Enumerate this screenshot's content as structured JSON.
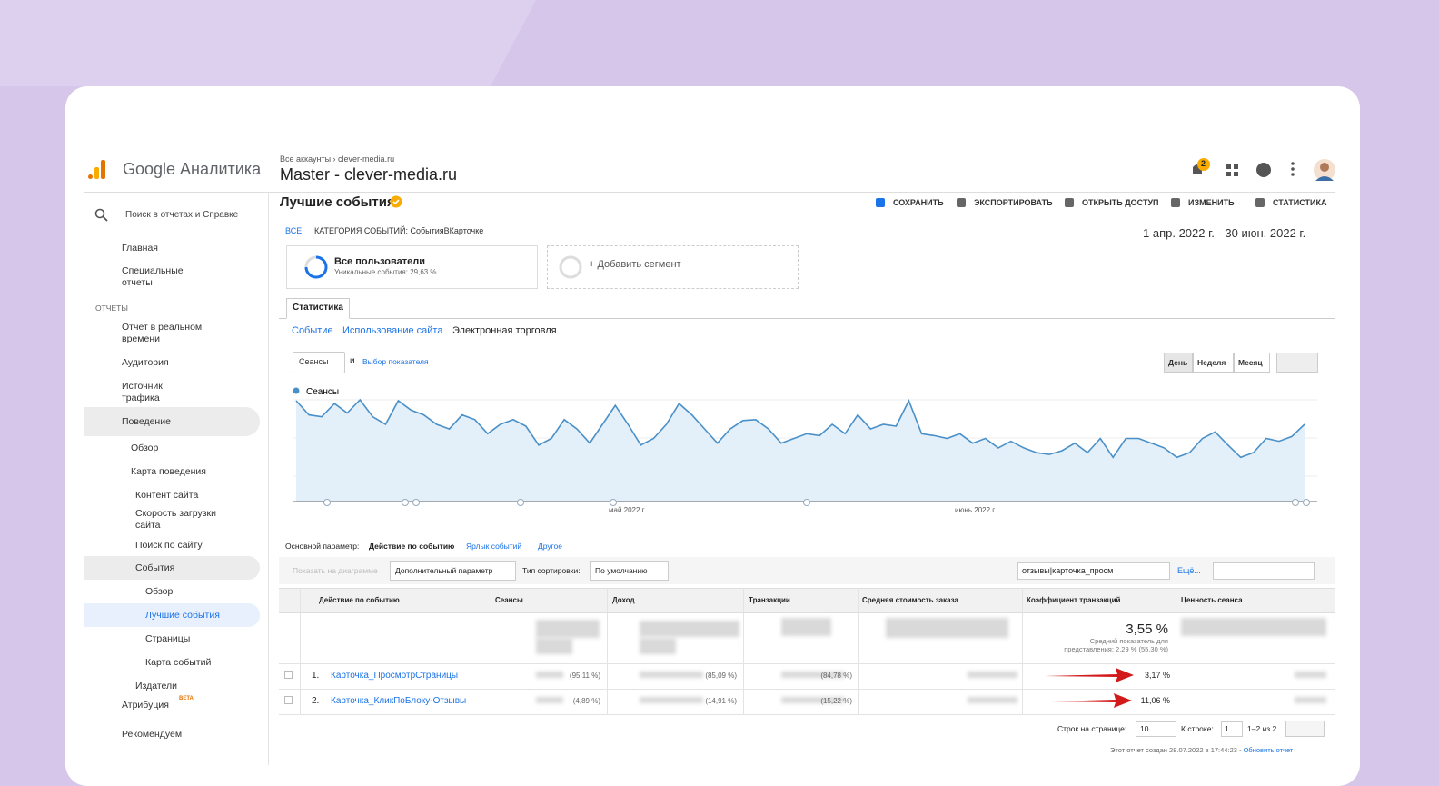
{
  "header": {
    "app_name": "Google Аналитика",
    "breadcrumb": "Все аккаунты › clever-media.ru",
    "property": "Master - clever-media.ru",
    "notification_count": "2"
  },
  "sidebar": {
    "search": "Поиск в отчетах и Справке",
    "items": [
      "Главная",
      "Специальные отчеты",
      "ОТЧЕТЫ",
      "Отчет в реальном времени",
      "Аудитория",
      "Источник трафика",
      "Поведение",
      "Обзор",
      "Карта поведения",
      "Контент сайта",
      "Скорость загрузки сайта",
      "Поиск по сайту",
      "События",
      "Обзор",
      "Лучшие события",
      "Страницы",
      "Карта событий",
      "Издатели",
      "Атрибуция",
      "Рекомендуем"
    ],
    "beta": "BETA"
  },
  "report": {
    "title": "Лучшие события",
    "actions": [
      "СОХРАНИТЬ",
      "ЭКСПОРТИРОВАТЬ",
      "ОТКРЫТЬ ДОСТУП",
      "ИЗМЕНИТЬ",
      "СТАТИСТИКА"
    ],
    "crumb_all": "ВСЕ",
    "crumb_category": "КАТЕГОРИЯ СОБЫТИЙ: СобытияВКарточке",
    "date_range": "1 апр. 2022 г. - 30 июн. 2022 г.",
    "segment_name": "Все пользователи",
    "segment_detail": "Уникальные события: 29,63 %",
    "add_segment": "+ Добавить сегмент",
    "tab": "Статистика",
    "subtabs": [
      "Событие",
      "Использование сайта",
      "Электронная торговля"
    ],
    "metric": "Сеансы",
    "and": "и",
    "choose_metric": "Выбор показателя",
    "periods": [
      "День",
      "Неделя",
      "Месяц"
    ]
  },
  "chart": {
    "type": "line",
    "legend": "Сеансы",
    "color": "#4a90c8",
    "month_labels": [
      "май 2022 г.",
      "июнь 2022 г."
    ],
    "values": [
      107,
      92,
      90,
      104,
      94,
      108,
      90,
      82,
      107,
      97,
      92,
      82,
      77,
      92,
      87,
      72,
      82,
      87,
      80,
      60,
      67,
      87,
      77,
      62,
      82,
      102,
      82,
      60,
      67,
      82,
      104,
      92,
      77,
      62,
      77,
      86,
      87,
      77,
      62,
      67,
      72,
      70,
      82,
      72,
      92,
      77,
      82,
      80,
      107,
      72,
      70,
      67,
      72,
      62,
      67,
      57,
      64,
      57,
      52,
      50,
      54,
      62,
      52,
      67,
      47,
      67,
      67,
      62,
      57,
      47,
      52,
      67,
      74,
      60,
      47,
      52,
      67,
      64,
      69,
      82
    ]
  },
  "table": {
    "dimension_label": "Основной параметр:",
    "dimension": "Действие по событию",
    "alt_dimensions": [
      "Ярлык событий",
      "Другое"
    ],
    "show_on_chart": "Показать на диаграмме",
    "secondary": "Дополнительный параметр",
    "sort_label": "Тип сортировки:",
    "sort": "По умолчанию",
    "search": "отзывы|карточка_просм",
    "more": "Ещё...",
    "columns": [
      "Действие по событию",
      "Сеансы",
      "Доход",
      "Транзакции",
      "Средняя стоимость заказа",
      "Коэффициент транзакций",
      "Ценность сеанса"
    ],
    "total_rate": "3,55 %",
    "total_note": "Средний показатель для представления: 2,29 % (55,30 %)",
    "rows": [
      [
        "1.",
        "Карточка_ПросмотрСтраницы",
        "(95,11 %)",
        "(85,09 %)",
        "(84,78 %)",
        "3,17 %"
      ],
      [
        "2.",
        "Карточка_КликПоБлоку-Отзывы",
        "(4,89 %)",
        "(14,91 %)",
        "(15,22 %)",
        "11,06 %"
      ]
    ]
  },
  "pagination": {
    "rows_label": "Строк на странице:",
    "rows": "10",
    "goto_label": "К строке:",
    "goto": "1",
    "range": "1–2 из 2"
  },
  "footer": {
    "created": "Этот отчет создан 28.07.2022 в 17:44:23 -",
    "refresh": "Обновить отчет"
  }
}
